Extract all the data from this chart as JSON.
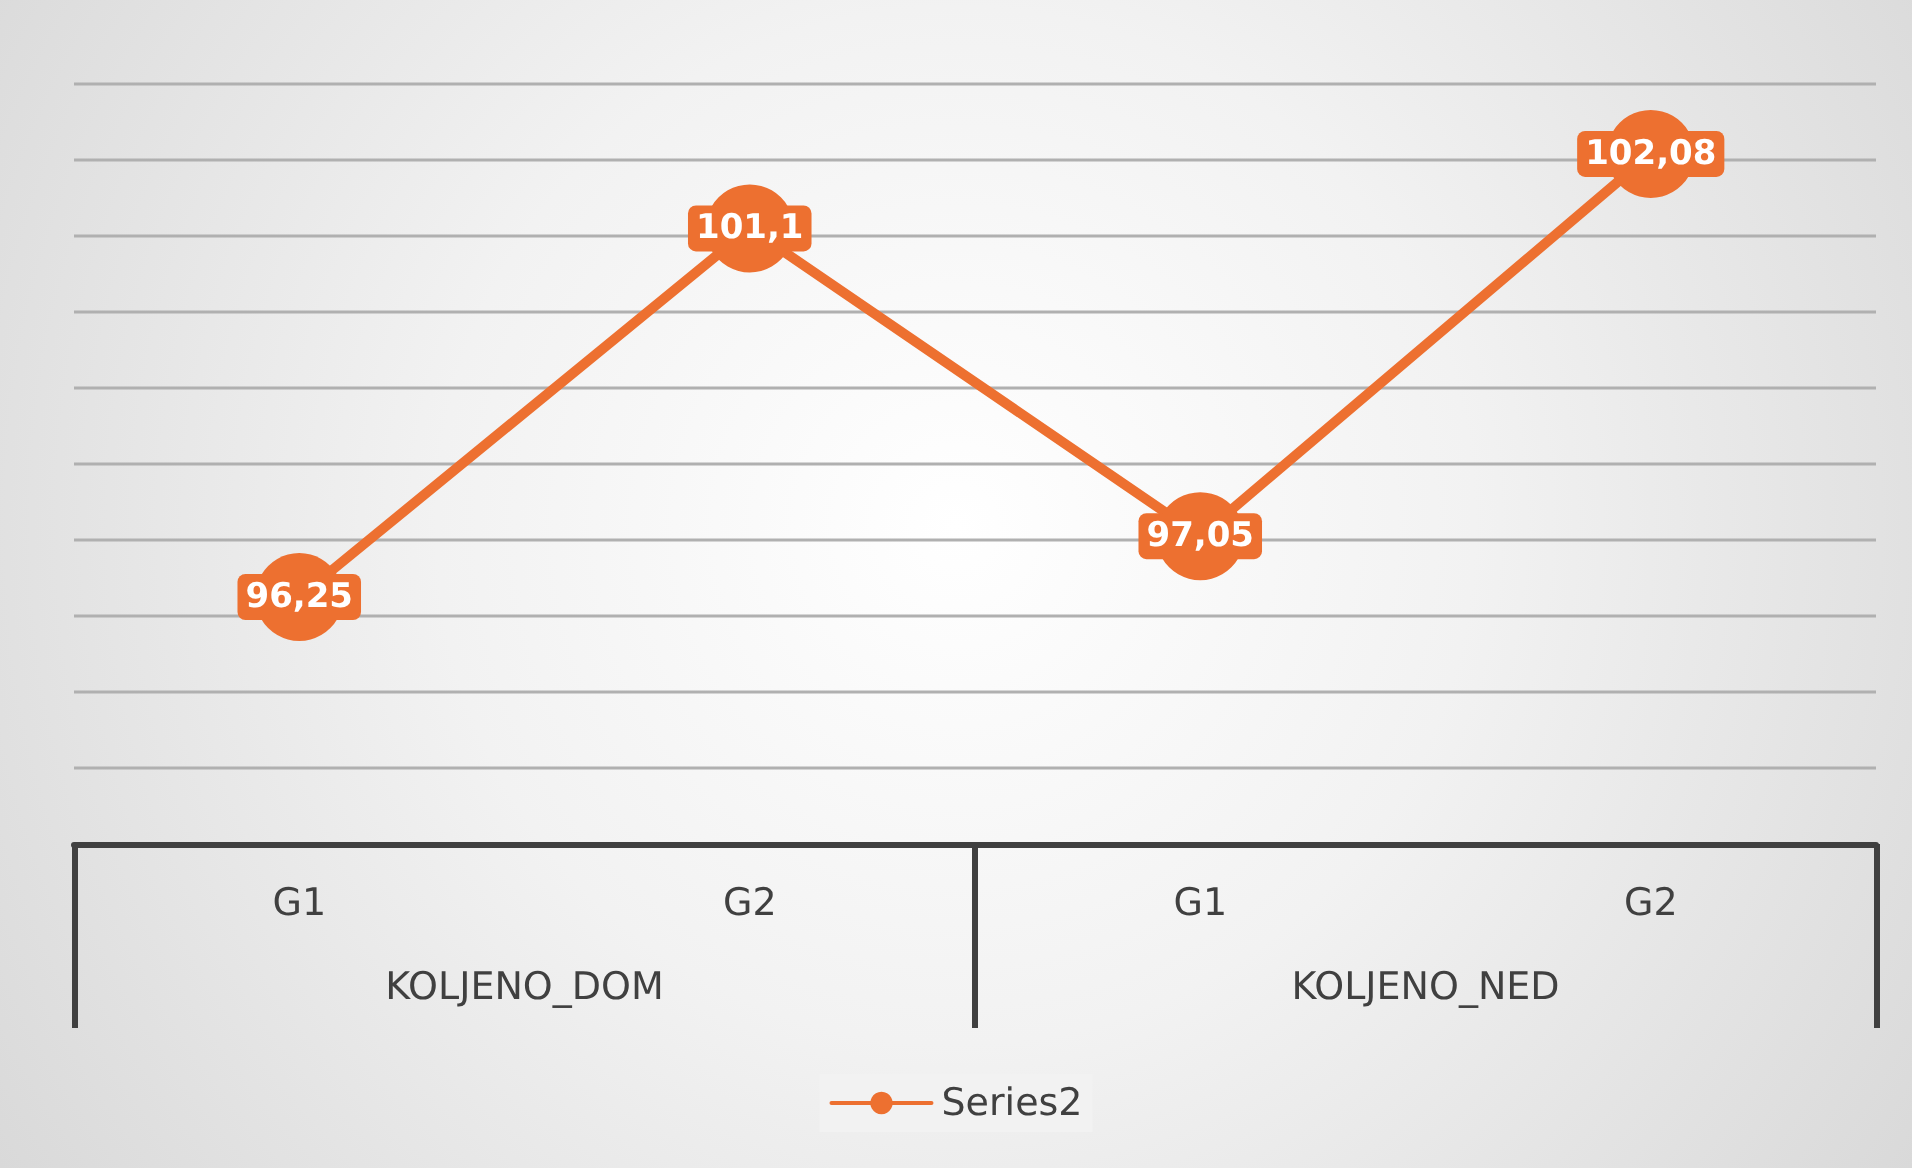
{
  "chart_data": {
    "type": "line",
    "categories": [
      "G1",
      "G2",
      "G1",
      "G2"
    ],
    "series": [
      {
        "name": "Series2",
        "color": "#ed7030",
        "values": [
          96.25,
          101.1,
          97.05,
          102.08
        ],
        "value_labels": [
          "96,25",
          "101,1",
          "97,05",
          "102,08"
        ]
      }
    ],
    "annotations": [
      "KOLJENO_DOM",
      "KOLJENO_NED"
    ],
    "ylim": [
      93,
      103
    ],
    "yticks": [
      {
        "value": 93,
        "label": null
      },
      {
        "value": 94,
        "label": null
      },
      {
        "value": 95,
        "label": null
      },
      {
        "value": 96,
        "label": null
      },
      {
        "value": 97,
        "label": null
      },
      {
        "value": 98,
        "label": null
      },
      {
        "value": 99,
        "label": null
      },
      {
        "value": 100,
        "label": null
      },
      {
        "value": 101,
        "label": null
      },
      {
        "value": 102,
        "label": null
      },
      {
        "value": 103,
        "label": null
      }
    ],
    "tick_labels": "x",
    "grid": "y",
    "legend": "bottom",
    "marker": "circle",
    "line_style": "solid"
  }
}
